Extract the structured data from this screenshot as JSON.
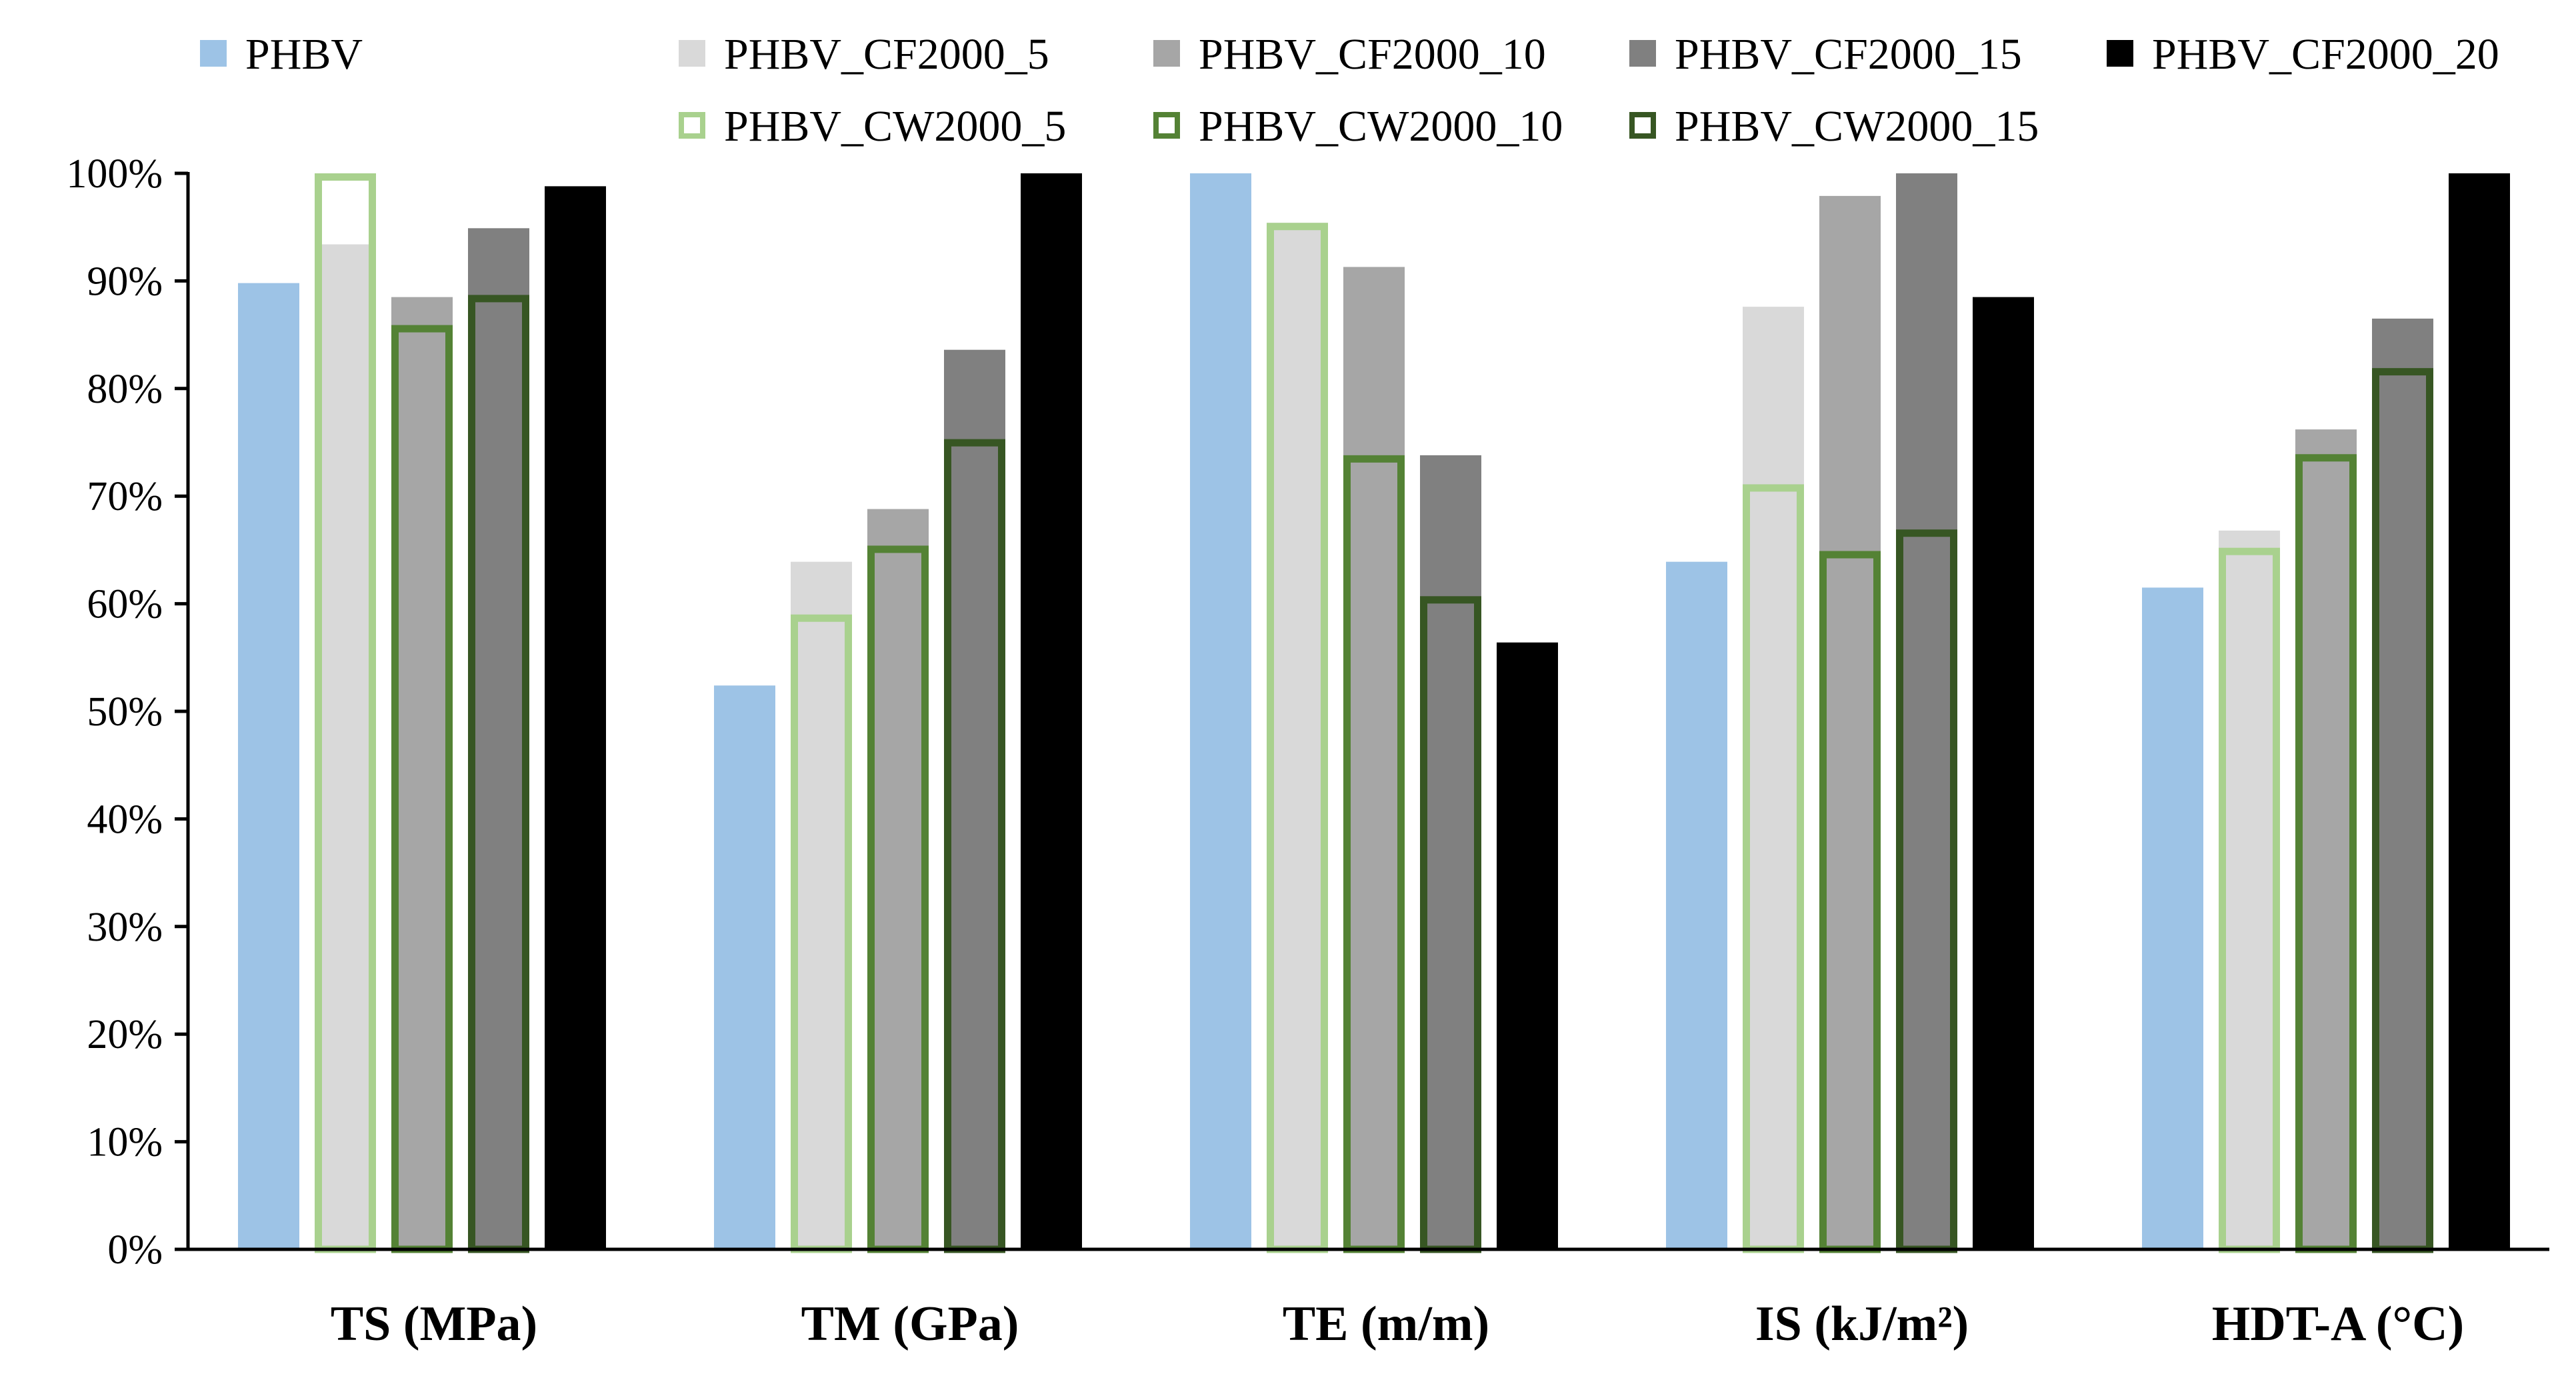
{
  "chart_data": {
    "type": "bar",
    "title": "",
    "xlabel": "",
    "ylabel": "",
    "ylim": [
      0,
      100
    ],
    "y_tick_format": "percent",
    "y_ticks": [
      0,
      10,
      20,
      30,
      40,
      50,
      60,
      70,
      80,
      90,
      100
    ],
    "y_tick_labels": [
      "0%",
      "10%",
      "20%",
      "30%",
      "40%",
      "50%",
      "60%",
      "70%",
      "80%",
      "90%",
      "100%"
    ],
    "grid": false,
    "legend_position": "top",
    "categories": [
      "TS (MPa)",
      "TM (GPa)",
      "TE (m/m)",
      "IS (kJ/m²)",
      "HDT-A (°C)"
    ],
    "series": [
      {
        "name": "PHBV",
        "style": "filled",
        "color": "#9DC3E6",
        "slot": 0,
        "values": [
          89.8,
          52.4,
          100,
          63.9,
          61.5
        ]
      },
      {
        "name": "PHBV_CF2000_5",
        "style": "filled",
        "color": "#D9D9D9",
        "slot": 1,
        "values": [
          93.4,
          63.9,
          95.4,
          87.6,
          66.8
        ]
      },
      {
        "name": "PHBV_CF2000_10",
        "style": "filled",
        "color": "#A6A6A6",
        "slot": 2,
        "values": [
          88.5,
          68.8,
          91.3,
          97.9,
          76.2
        ]
      },
      {
        "name": "PHBV_CF2000_15",
        "style": "filled",
        "color": "#808080",
        "slot": 3,
        "values": [
          94.9,
          83.6,
          73.8,
          100,
          86.5
        ]
      },
      {
        "name": "PHBV_CF2000_20",
        "style": "filled",
        "color": "#000000",
        "slot": 4,
        "values": [
          98.8,
          100,
          56.4,
          88.5,
          100
        ]
      },
      {
        "name": "PHBV_CW2000_5",
        "style": "outline",
        "color": "#A9D18E",
        "slot": 1,
        "values": [
          100,
          59.0,
          95.4,
          71.1,
          65.2
        ]
      },
      {
        "name": "PHBV_CW2000_10",
        "style": "outline",
        "color": "#548235",
        "slot": 2,
        "values": [
          85.9,
          65.4,
          73.8,
          64.9,
          73.9
        ]
      },
      {
        "name": "PHBV_CW2000_15",
        "style": "outline",
        "color": "#375623",
        "slot": 3,
        "values": [
          88.7,
          75.3,
          60.7,
          66.9,
          81.9
        ]
      }
    ]
  }
}
